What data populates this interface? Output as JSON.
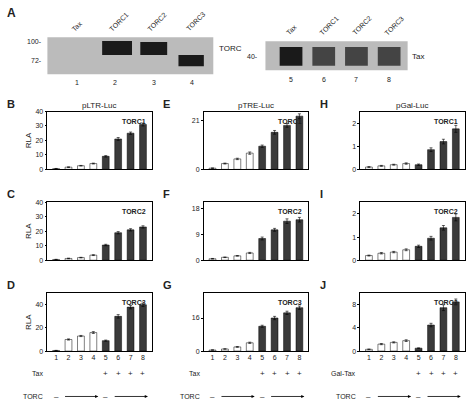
{
  "chart_data": [
    {
      "type": "blot",
      "title": "A",
      "ylabel": "TORC",
      "categories": [
        "Tax",
        "TORC1",
        "TORC2",
        "TORC3"
      ],
      "x": [
        "1",
        "2",
        "3",
        "4"
      ],
      "annotations": [
        "100-",
        "72-"
      ],
      "color": "#bbbbbb",
      "colors": [
        null,
        "#1a1a1a",
        "#1a1a1a",
        "#1a1a1a"
      ]
    },
    {
      "type": "blot",
      "ylabel": "Tax",
      "categories": [
        "Tax",
        "TORC1",
        "TORC2",
        "TORC3"
      ],
      "x": [
        "5",
        "6",
        "7",
        "8"
      ],
      "annotations": [
        "40-"
      ],
      "color": "#bbbbbb",
      "colors": [
        "#1a1a1a",
        "#444444",
        "#444444",
        "#444444"
      ]
    },
    {
      "type": "bar",
      "title": "TORC1",
      "subtitle": "pLTR-Luc",
      "ylabel": "RLA",
      "categories": [
        null,
        null,
        null,
        null,
        null,
        null,
        null,
        null
      ],
      "values": [
        0.5,
        1.5,
        2.5,
        4.0,
        9.0,
        21.0,
        25.0,
        31.0
      ],
      "errors": [
        0.1,
        0.2,
        0.2,
        0.3,
        0.5,
        1.0,
        0.8,
        1.0
      ],
      "colors": [
        "white",
        "white",
        "white",
        "white",
        "#3a3a3a",
        "#3a3a3a",
        "#3a3a3a",
        "#3a3a3a"
      ],
      "ylim": [
        0,
        40
      ],
      "yticks": [
        0,
        10,
        20,
        30,
        40
      ],
      "grid": false,
      "tick_labels": "y",
      "annotations": [
        {
          "text": "B"
        }
      ]
    },
    {
      "type": "bar",
      "title": "TORC2",
      "ylabel": "RLA",
      "categories": [
        null,
        null,
        null,
        null,
        null,
        null,
        null,
        null
      ],
      "values": [
        0.5,
        1.2,
        1.8,
        3.5,
        10.5,
        19.0,
        21.0,
        23.0
      ],
      "errors": [
        0.1,
        0.2,
        0.2,
        0.3,
        0.5,
        0.8,
        0.8,
        0.8
      ],
      "colors": [
        "white",
        "white",
        "white",
        "white",
        "#3a3a3a",
        "#3a3a3a",
        "#3a3a3a",
        "#3a3a3a"
      ],
      "ylim": [
        0,
        40
      ],
      "yticks": [
        0,
        10,
        20,
        30,
        40
      ],
      "grid": false,
      "tick_labels": "y",
      "annotations": [
        {
          "text": "C"
        }
      ]
    },
    {
      "type": "bar",
      "title": "TORC3",
      "ylabel": "RLA",
      "categories": [
        "1",
        "2",
        "3",
        "4",
        "5",
        "6",
        "7",
        "8"
      ],
      "values": [
        0.5,
        10.0,
        13.0,
        16.0,
        9.0,
        30.0,
        38.0,
        40.0
      ],
      "errors": [
        0.1,
        0.5,
        0.5,
        0.8,
        0.5,
        1.5,
        1.5,
        1.5
      ],
      "colors": [
        "white",
        "white",
        "white",
        "white",
        "#3a3a3a",
        "#3a3a3a",
        "#3a3a3a",
        "#3a3a3a"
      ],
      "ylim": [
        0,
        50
      ],
      "yticks": [
        0,
        20,
        40
      ],
      "grid": false,
      "annotations": [
        {
          "text": "D"
        },
        {
          "text": "Tax"
        },
        {
          "text": "+",
          "x": 4
        },
        {
          "text": "+",
          "x": 5
        },
        {
          "text": "+",
          "x": 6
        },
        {
          "text": "+",
          "x": 7
        },
        {
          "text": "TORC"
        },
        {
          "text": "–",
          "x": 0
        },
        {
          "text": "–",
          "x": 4
        }
      ]
    },
    {
      "type": "bar",
      "title": "TORC1",
      "subtitle": "pTRE-Luc",
      "categories": [
        null,
        null,
        null,
        null,
        null,
        null,
        null,
        null
      ],
      "values": [
        0.5,
        2.5,
        4.5,
        7.0,
        10.0,
        16.0,
        19.0,
        23.0
      ],
      "errors": [
        0.1,
        0.2,
        0.3,
        0.5,
        0.5,
        0.8,
        0.8,
        1.0
      ],
      "colors": [
        "white",
        "white",
        "white",
        "white",
        "#3a3a3a",
        "#3a3a3a",
        "#3a3a3a",
        "#3a3a3a"
      ],
      "ylim": [
        0,
        25
      ],
      "yticks": [
        0,
        21
      ],
      "grid": false,
      "tick_labels": "y",
      "annotations": [
        {
          "text": "E"
        }
      ]
    },
    {
      "type": "bar",
      "title": "TORC2",
      "categories": [
        null,
        null,
        null,
        null,
        null,
        null,
        null,
        null
      ],
      "values": [
        0.5,
        1.0,
        1.5,
        2.5,
        7.5,
        10.5,
        13.5,
        14.0
      ],
      "errors": [
        0.1,
        0.1,
        0.1,
        0.2,
        0.5,
        0.5,
        0.8,
        0.8
      ],
      "colors": [
        "white",
        "white",
        "white",
        "white",
        "#3a3a3a",
        "#3a3a3a",
        "#3a3a3a",
        "#3a3a3a"
      ],
      "ylim": [
        0,
        20
      ],
      "yticks": [
        0,
        9,
        18
      ],
      "grid": false,
      "tick_labels": "y",
      "annotations": [
        {
          "text": "F"
        }
      ]
    },
    {
      "type": "bar",
      "title": "TORC3",
      "categories": [
        "1",
        "2",
        "3",
        "4",
        "5",
        "6",
        "7",
        "8"
      ],
      "values": [
        0.5,
        1.0,
        2.0,
        4.0,
        12.0,
        16.0,
        18.5,
        21.0
      ],
      "errors": [
        0.1,
        0.1,
        0.2,
        0.3,
        0.5,
        0.8,
        0.8,
        0.8
      ],
      "colors": [
        "white",
        "white",
        "white",
        "white",
        "#3a3a3a",
        "#3a3a3a",
        "#3a3a3a",
        "#3a3a3a"
      ],
      "ylim": [
        0,
        28
      ],
      "yticks": [
        0,
        16
      ],
      "grid": false,
      "annotations": [
        {
          "text": "G"
        },
        {
          "text": "Tax"
        },
        {
          "text": "+",
          "x": 4
        },
        {
          "text": "+",
          "x": 5
        },
        {
          "text": "+",
          "x": 6
        },
        {
          "text": "+",
          "x": 7
        },
        {
          "text": "TORC"
        },
        {
          "text": "–",
          "x": 0
        },
        {
          "text": "–",
          "x": 4
        }
      ]
    },
    {
      "type": "bar",
      "title": "TORC1",
      "subtitle": "pGal-Luc",
      "categories": [
        null,
        null,
        null,
        null,
        null,
        null,
        null,
        null
      ],
      "values": [
        0.1,
        0.15,
        0.2,
        0.25,
        0.2,
        0.85,
        1.2,
        1.75
      ],
      "errors": [
        0.02,
        0.02,
        0.02,
        0.03,
        0.03,
        0.08,
        0.1,
        0.15
      ],
      "colors": [
        "white",
        "white",
        "white",
        "white",
        "#3a3a3a",
        "#3a3a3a",
        "#3a3a3a",
        "#3a3a3a"
      ],
      "ylim": [
        0,
        2.5
      ],
      "yticks": [
        0,
        1,
        2
      ],
      "grid": false,
      "tick_labels": "y",
      "annotations": [
        {
          "text": "H"
        }
      ]
    },
    {
      "type": "bar",
      "title": "TORC2",
      "categories": [
        null,
        null,
        null,
        null,
        null,
        null,
        null,
        null
      ],
      "values": [
        0.2,
        0.3,
        0.35,
        0.45,
        0.6,
        0.95,
        1.4,
        1.85
      ],
      "errors": [
        0.02,
        0.03,
        0.03,
        0.04,
        0.05,
        0.08,
        0.1,
        0.15
      ],
      "colors": [
        "white",
        "white",
        "white",
        "white",
        "#3a3a3a",
        "#3a3a3a",
        "#3a3a3a",
        "#3a3a3a"
      ],
      "ylim": [
        0,
        2.5
      ],
      "yticks": [
        0,
        1,
        2
      ],
      "grid": false,
      "tick_labels": "y",
      "annotations": [
        {
          "text": "I"
        }
      ]
    },
    {
      "type": "bar",
      "title": "TORC3",
      "categories": [
        "1",
        "2",
        "3",
        "4",
        "5",
        "6",
        "7",
        "8"
      ],
      "values": [
        0.3,
        1.2,
        1.5,
        1.8,
        0.5,
        4.5,
        7.5,
        8.5
      ],
      "errors": [
        0.05,
        0.1,
        0.1,
        0.15,
        0.05,
        0.3,
        0.5,
        0.5
      ],
      "colors": [
        "white",
        "white",
        "white",
        "white",
        "#3a3a3a",
        "#3a3a3a",
        "#3a3a3a",
        "#3a3a3a"
      ],
      "ylim": [
        0,
        10
      ],
      "yticks": [
        0,
        4,
        8
      ],
      "grid": false,
      "annotations": [
        {
          "text": "J"
        },
        {
          "text": "Gal-Tax"
        },
        {
          "text": "+",
          "x": 4
        },
        {
          "text": "+",
          "x": 5
        },
        {
          "text": "+",
          "x": 6
        },
        {
          "text": "+",
          "x": 7
        },
        {
          "text": "TORC"
        },
        {
          "text": "–",
          "x": 0
        },
        {
          "text": "–",
          "x": 4
        }
      ]
    }
  ]
}
